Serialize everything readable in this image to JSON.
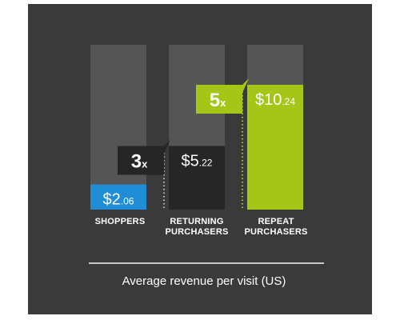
{
  "colors": {
    "panel": "#3a3a3a",
    "track": "#555555",
    "shoppers": "#1f8ed6",
    "returning": "#262626",
    "repeat": "#a6c617",
    "text": "#ffffff"
  },
  "chart_data": {
    "type": "bar",
    "categories": [
      {
        "line1": "SHOPPERS",
        "line2": ""
      },
      {
        "line1": "RETURNING",
        "line2": "PURCHASERS"
      },
      {
        "line1": "REPEAT",
        "line2": "PURCHASERS"
      }
    ],
    "values": [
      2.06,
      5.22,
      10.24
    ],
    "value_labels": [
      {
        "main": "$2",
        "cents": ".06"
      },
      {
        "main": "$5",
        "cents": ".22"
      },
      {
        "main": "$10",
        "cents": ".24"
      }
    ],
    "ylim": [
      0,
      10.24
    ],
    "multipliers": [
      {
        "main": "3",
        "suffix": "x"
      },
      {
        "main": "5",
        "suffix": "x"
      }
    ],
    "caption": "Average revenue per visit (US)",
    "grid": false,
    "legend": "none"
  }
}
